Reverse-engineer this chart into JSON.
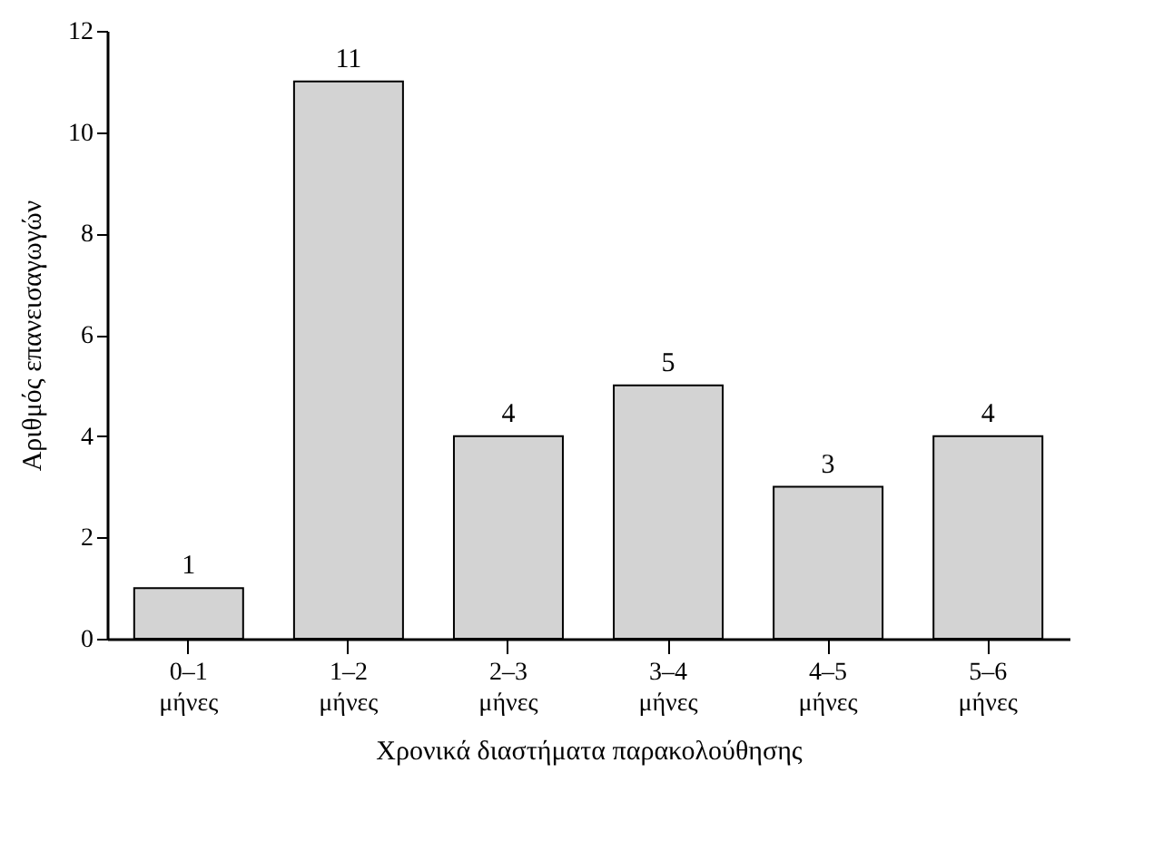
{
  "chart_data": {
    "type": "bar",
    "xlabel": "Χρονικά διαστήματα παρακολούθησης",
    "ylabel": "Αριθμός επανεισαγωγών",
    "categories": [
      "0–1 μήνες",
      "1–2 μήνες",
      "2–3 μήνες",
      "3–4 μήνες",
      "4–5 μήνες",
      "5–6 μήνες"
    ],
    "values": [
      1,
      11,
      4,
      5,
      3,
      4
    ],
    "color": "#d3d3d3",
    "ylim": [
      0,
      12
    ],
    "yticks": [
      0,
      2,
      4,
      6,
      8,
      10,
      12
    ],
    "grid": false,
    "data_labels": true
  }
}
